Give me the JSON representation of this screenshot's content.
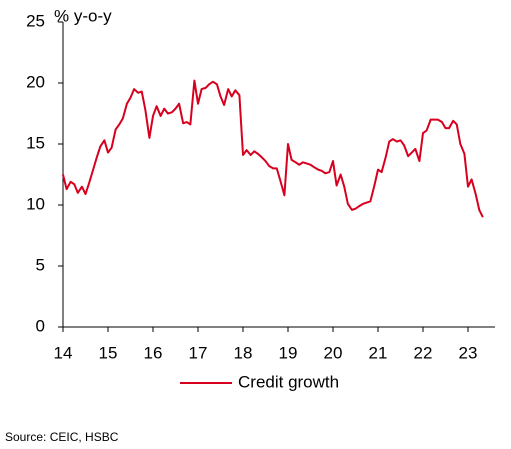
{
  "chart_data": {
    "type": "line",
    "y_label": "% y-o-y",
    "source": "Source: CEIC, HSBC",
    "x": [
      14,
      14.08,
      14.17,
      14.25,
      14.33,
      14.42,
      14.5,
      14.58,
      14.67,
      14.75,
      14.83,
      14.92,
      15,
      15.08,
      15.17,
      15.25,
      15.33,
      15.42,
      15.5,
      15.58,
      15.67,
      15.75,
      15.83,
      15.92,
      16,
      16.08,
      16.17,
      16.25,
      16.33,
      16.42,
      16.5,
      16.58,
      16.67,
      16.75,
      16.83,
      16.92,
      17,
      17.08,
      17.17,
      17.25,
      17.33,
      17.42,
      17.5,
      17.58,
      17.67,
      17.75,
      17.83,
      17.92,
      18,
      18.08,
      18.17,
      18.25,
      18.33,
      18.42,
      18.5,
      18.58,
      18.67,
      18.75,
      18.83,
      18.92,
      19,
      19.08,
      19.17,
      19.25,
      19.33,
      19.42,
      19.5,
      19.58,
      19.67,
      19.75,
      19.83,
      19.92,
      20,
      20.08,
      20.17,
      20.25,
      20.33,
      20.42,
      20.5,
      20.58,
      20.67,
      20.75,
      20.83,
      20.92,
      21,
      21.08,
      21.17,
      21.25,
      21.33,
      21.42,
      21.5,
      21.58,
      21.67,
      21.75,
      21.83,
      21.92,
      22,
      22.08,
      22.17,
      22.25,
      22.33,
      22.42,
      22.5,
      22.58,
      22.67,
      22.75,
      22.83,
      22.92,
      23,
      23.08,
      23.17,
      23.25,
      23.33
    ],
    "series": [
      {
        "name": "Credit growth",
        "color": "#d7001e",
        "values": [
          12.5,
          11.3,
          11.9,
          11.7,
          11.0,
          11.5,
          10.9,
          11.8,
          12.9,
          13.9,
          14.8,
          15.3,
          14.3,
          14.7,
          16.2,
          16.6,
          17.1,
          18.3,
          18.8,
          19.5,
          19.2,
          19.3,
          17.8,
          15.5,
          17.3,
          18.1,
          17.3,
          17.9,
          17.5,
          17.6,
          17.9,
          18.3,
          16.7,
          16.8,
          16.6,
          20.2,
          18.3,
          19.5,
          19.6,
          19.9,
          20.1,
          19.9,
          18.9,
          18.2,
          19.5,
          18.9,
          19.4,
          19.0,
          14.1,
          14.5,
          14.1,
          14.4,
          14.2,
          13.9,
          13.6,
          13.2,
          13.0,
          13.0,
          12.0,
          10.8,
          15.0,
          13.7,
          13.5,
          13.3,
          13.5,
          13.4,
          13.3,
          13.1,
          12.9,
          12.8,
          12.6,
          12.7,
          13.6,
          11.6,
          12.5,
          11.5,
          10.1,
          9.6,
          9.7,
          9.9,
          10.1,
          10.2,
          10.3,
          11.6,
          12.9,
          12.7,
          13.9,
          15.2,
          15.4,
          15.2,
          15.3,
          14.9,
          14.0,
          14.3,
          14.6,
          13.6,
          15.9,
          16.1,
          17.0,
          17.0,
          17.0,
          16.8,
          16.3,
          16.3,
          16.9,
          16.6,
          15.0,
          14.2,
          11.5,
          12.1,
          10.9,
          9.6,
          9.0
        ]
      }
    ],
    "xlim": [
      14,
      23.6
    ],
    "xticks": [
      14,
      15,
      16,
      17,
      18,
      19,
      20,
      21,
      22,
      23
    ],
    "ylim": [
      0,
      25
    ],
    "yticks": [
      0,
      5,
      10,
      15,
      20,
      25
    ],
    "grid": false
  }
}
